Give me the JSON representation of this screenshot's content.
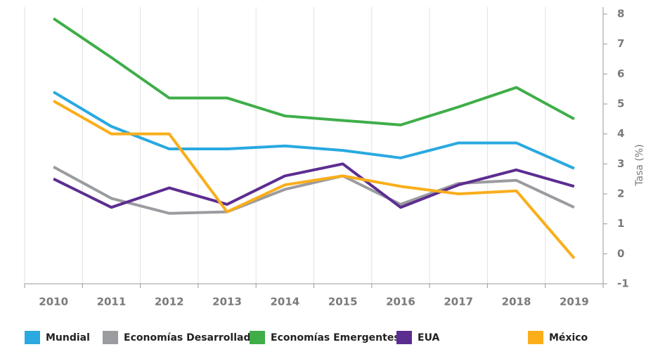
{
  "chart_data": {
    "type": "line",
    "x_categories_note_free": null,
    "categories": [
      "2010",
      "2011",
      "2012",
      "2013",
      "2014",
      "2015",
      "2016",
      "2017",
      "2018",
      "2019"
    ],
    "y_axis_label": "Tasa (%)",
    "ylim": [
      -1,
      8
    ],
    "yticks": [
      -1,
      0,
      1,
      2,
      3,
      4,
      5,
      6,
      7,
      8
    ],
    "grid": true,
    "legend": "bottom",
    "series": [
      {
        "name": "Mundial",
        "color": "#29a9e0",
        "values": [
          5.4,
          4.25,
          3.5,
          3.5,
          3.6,
          3.45,
          3.2,
          3.7,
          3.7,
          2.85
        ]
      },
      {
        "name": "Economías Desarrolladas",
        "color": "#9b9ca0",
        "values": [
          2.9,
          1.85,
          1.35,
          1.4,
          2.15,
          2.6,
          1.65,
          2.35,
          2.45,
          1.55
        ]
      },
      {
        "name": "Economías Emergentes",
        "color": "#3fae49",
        "values": [
          7.85,
          6.55,
          5.2,
          5.2,
          4.6,
          4.45,
          4.3,
          4.9,
          5.55,
          4.5
        ]
      },
      {
        "name": "EUA",
        "color": "#5c2d91",
        "values": [
          2.5,
          1.55,
          2.2,
          1.65,
          2.6,
          3.0,
          1.55,
          2.3,
          2.8,
          2.25
        ]
      },
      {
        "name": "México",
        "color": "#f9ae1a",
        "values": [
          5.1,
          4.0,
          4.0,
          1.4,
          2.3,
          2.6,
          2.25,
          2.0,
          2.1,
          -0.15
        ]
      }
    ]
  }
}
